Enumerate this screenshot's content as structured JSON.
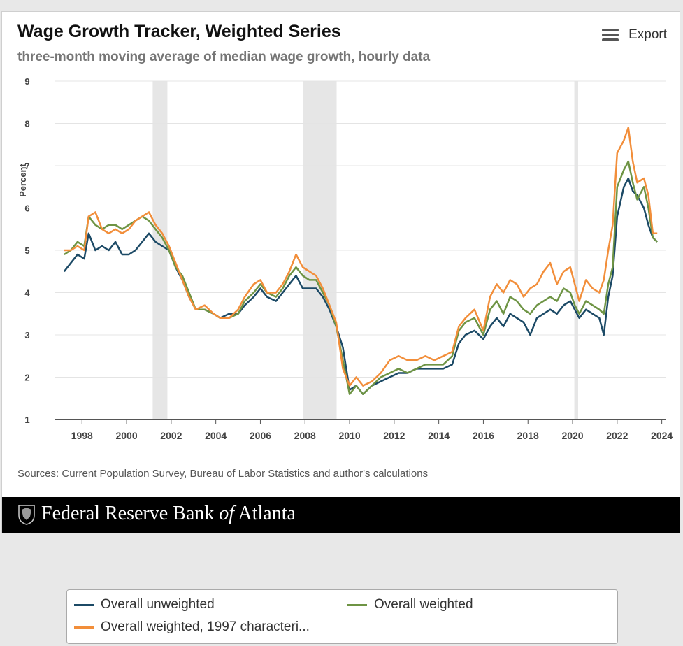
{
  "header": {
    "title": "Wage Growth Tracker, Weighted Series",
    "subtitle": "three-month moving average of median wage growth, hourly data",
    "export_label": "Export"
  },
  "sources": "Sources: Current Population Survey, Bureau of Labor Statistics and author's calculations",
  "footer": {
    "brand_pre": "Federal Reserve Bank ",
    "brand_of": "of",
    "brand_post": " Atlanta"
  },
  "legend": {
    "items": [
      {
        "label": "Overall unweighted",
        "color": "#1c4a66"
      },
      {
        "label": "Overall weighted",
        "color": "#6e9444"
      },
      {
        "label": "Overall weighted, 1997 characteri...",
        "color": "#f28e3a"
      }
    ]
  },
  "chart_data": {
    "type": "line",
    "title": "Wage Growth Tracker, Weighted Series",
    "subtitle": "three-month moving average of median wage growth, hourly data",
    "xlabel": "",
    "ylabel": "Percent",
    "xlim": [
      1996.8,
      2024.2
    ],
    "ylim": [
      1,
      9
    ],
    "x_ticks": [
      "1998",
      "2000",
      "2002",
      "2004",
      "2006",
      "2008",
      "2010",
      "2012",
      "2014",
      "2016",
      "2018",
      "2020",
      "2022",
      "2024"
    ],
    "y_ticks": [
      "1",
      "2",
      "3",
      "4",
      "5",
      "6",
      "7",
      "8",
      "9"
    ],
    "grid": "horizontal",
    "recessions": [
      [
        2001.17,
        2001.83
      ],
      [
        2007.92,
        2009.42
      ],
      [
        2020.08,
        2020.25
      ]
    ],
    "series": [
      {
        "name": "Overall unweighted",
        "color": "#1c4a66",
        "x": [
          1997.2,
          1997.5,
          1997.8,
          1998.1,
          1998.3,
          1998.6,
          1998.9,
          1999.2,
          1999.5,
          1999.8,
          2000.1,
          2000.4,
          2000.7,
          2001.0,
          2001.3,
          2001.6,
          2001.9,
          2002.2,
          2002.5,
          2002.8,
          2003.1,
          2003.5,
          2003.9,
          2004.2,
          2004.6,
          2005.0,
          2005.3,
          2005.7,
          2006.0,
          2006.3,
          2006.7,
          2007.0,
          2007.3,
          2007.6,
          2007.9,
          2008.2,
          2008.5,
          2008.8,
          2009.1,
          2009.4,
          2009.7,
          2010.0,
          2010.3,
          2010.6,
          2011.0,
          2011.4,
          2011.8,
          2012.2,
          2012.6,
          2013.0,
          2013.4,
          2013.8,
          2014.2,
          2014.6,
          2014.9,
          2015.2,
          2015.6,
          2016.0,
          2016.3,
          2016.6,
          2016.9,
          2017.2,
          2017.5,
          2017.8,
          2018.1,
          2018.4,
          2018.7,
          2019.0,
          2019.3,
          2019.6,
          2019.9,
          2020.1,
          2020.3,
          2020.6,
          2020.9,
          2021.2,
          2021.4,
          2021.6,
          2021.8,
          2022.0,
          2022.3,
          2022.5,
          2022.7,
          2022.9,
          2023.2,
          2023.4,
          2023.6,
          2023.8
        ],
        "values": [
          4.5,
          4.7,
          4.9,
          4.8,
          5.4,
          5.0,
          5.1,
          5.0,
          5.2,
          4.9,
          4.9,
          5.0,
          5.2,
          5.4,
          5.2,
          5.1,
          5.0,
          4.6,
          4.3,
          3.9,
          3.6,
          3.6,
          3.5,
          3.4,
          3.5,
          3.5,
          3.7,
          3.9,
          4.1,
          3.9,
          3.8,
          4.0,
          4.2,
          4.4,
          4.1,
          4.1,
          4.1,
          3.9,
          3.6,
          3.2,
          2.7,
          1.7,
          1.8,
          1.6,
          1.8,
          1.9,
          2.0,
          2.1,
          2.1,
          2.2,
          2.2,
          2.2,
          2.2,
          2.3,
          2.8,
          3.0,
          3.1,
          2.9,
          3.2,
          3.4,
          3.2,
          3.5,
          3.4,
          3.3,
          3.0,
          3.4,
          3.5,
          3.6,
          3.5,
          3.7,
          3.8,
          3.6,
          3.4,
          3.6,
          3.5,
          3.4,
          3.0,
          3.9,
          4.4,
          5.8,
          6.5,
          6.7,
          6.4,
          6.3,
          6.0,
          5.6,
          5.3,
          5.2
        ]
      },
      {
        "name": "Overall weighted",
        "color": "#6e9444",
        "x": [
          1997.2,
          1997.5,
          1997.8,
          1998.1,
          1998.3,
          1998.6,
          1998.9,
          1999.2,
          1999.5,
          1999.8,
          2000.1,
          2000.4,
          2000.7,
          2001.0,
          2001.3,
          2001.6,
          2001.9,
          2002.2,
          2002.5,
          2002.8,
          2003.1,
          2003.5,
          2003.9,
          2004.2,
          2004.6,
          2005.0,
          2005.3,
          2005.7,
          2006.0,
          2006.3,
          2006.7,
          2007.0,
          2007.3,
          2007.6,
          2007.9,
          2008.2,
          2008.5,
          2008.8,
          2009.1,
          2009.4,
          2009.7,
          2010.0,
          2010.3,
          2010.6,
          2011.0,
          2011.4,
          2011.8,
          2012.2,
          2012.6,
          2013.0,
          2013.4,
          2013.8,
          2014.2,
          2014.6,
          2014.9,
          2015.2,
          2015.6,
          2016.0,
          2016.3,
          2016.6,
          2016.9,
          2017.2,
          2017.5,
          2017.8,
          2018.1,
          2018.4,
          2018.7,
          2019.0,
          2019.3,
          2019.6,
          2019.9,
          2020.1,
          2020.3,
          2020.6,
          2020.9,
          2021.2,
          2021.4,
          2021.6,
          2021.8,
          2022.0,
          2022.3,
          2022.5,
          2022.7,
          2022.9,
          2023.2,
          2023.4,
          2023.6,
          2023.8
        ],
        "values": [
          4.9,
          5.0,
          5.2,
          5.1,
          5.8,
          5.6,
          5.5,
          5.6,
          5.6,
          5.5,
          5.6,
          5.7,
          5.8,
          5.7,
          5.5,
          5.3,
          5.0,
          4.6,
          4.4,
          4.0,
          3.6,
          3.6,
          3.5,
          3.4,
          3.4,
          3.5,
          3.8,
          4.0,
          4.2,
          4.0,
          3.9,
          4.1,
          4.4,
          4.6,
          4.4,
          4.3,
          4.3,
          4.0,
          3.7,
          3.2,
          2.4,
          1.6,
          1.8,
          1.6,
          1.8,
          2.0,
          2.1,
          2.2,
          2.1,
          2.2,
          2.3,
          2.3,
          2.3,
          2.5,
          3.1,
          3.3,
          3.4,
          3.0,
          3.6,
          3.8,
          3.5,
          3.9,
          3.8,
          3.6,
          3.5,
          3.7,
          3.8,
          3.9,
          3.8,
          4.1,
          4.0,
          3.7,
          3.5,
          3.8,
          3.7,
          3.6,
          3.5,
          4.2,
          4.6,
          6.5,
          6.9,
          7.1,
          6.6,
          6.2,
          6.5,
          6.0,
          5.3,
          5.2
        ]
      },
      {
        "name": "Overall weighted, 1997 characteri...",
        "color": "#f28e3a",
        "x": [
          1997.2,
          1997.5,
          1997.8,
          1998.1,
          1998.3,
          1998.6,
          1998.9,
          1999.2,
          1999.5,
          1999.8,
          2000.1,
          2000.4,
          2000.7,
          2001.0,
          2001.3,
          2001.6,
          2001.9,
          2002.2,
          2002.5,
          2002.8,
          2003.1,
          2003.5,
          2003.9,
          2004.2,
          2004.6,
          2005.0,
          2005.3,
          2005.7,
          2006.0,
          2006.3,
          2006.7,
          2007.0,
          2007.3,
          2007.6,
          2007.9,
          2008.2,
          2008.5,
          2008.8,
          2009.1,
          2009.4,
          2009.7,
          2010.0,
          2010.3,
          2010.6,
          2011.0,
          2011.4,
          2011.8,
          2012.2,
          2012.6,
          2013.0,
          2013.4,
          2013.8,
          2014.2,
          2014.6,
          2014.9,
          2015.2,
          2015.6,
          2016.0,
          2016.3,
          2016.6,
          2016.9,
          2017.2,
          2017.5,
          2017.8,
          2018.1,
          2018.4,
          2018.7,
          2019.0,
          2019.3,
          2019.6,
          2019.9,
          2020.1,
          2020.3,
          2020.6,
          2020.9,
          2021.2,
          2021.4,
          2021.6,
          2021.8,
          2022.0,
          2022.3,
          2022.5,
          2022.7,
          2022.9,
          2023.2,
          2023.4,
          2023.6,
          2023.8
        ],
        "values": [
          5.0,
          5.0,
          5.1,
          5.0,
          5.8,
          5.9,
          5.5,
          5.4,
          5.5,
          5.4,
          5.5,
          5.7,
          5.8,
          5.9,
          5.6,
          5.4,
          5.1,
          4.7,
          4.3,
          3.9,
          3.6,
          3.7,
          3.5,
          3.4,
          3.4,
          3.6,
          3.9,
          4.2,
          4.3,
          4.0,
          4.0,
          4.2,
          4.5,
          4.9,
          4.6,
          4.5,
          4.4,
          4.1,
          3.7,
          3.3,
          2.2,
          1.8,
          2.0,
          1.8,
          1.9,
          2.1,
          2.4,
          2.5,
          2.4,
          2.4,
          2.5,
          2.4,
          2.5,
          2.6,
          3.2,
          3.4,
          3.6,
          3.1,
          3.9,
          4.2,
          4.0,
          4.3,
          4.2,
          3.9,
          4.1,
          4.2,
          4.5,
          4.7,
          4.2,
          4.5,
          4.6,
          4.2,
          3.8,
          4.3,
          4.1,
          4.0,
          4.3,
          5.0,
          5.6,
          7.3,
          7.6,
          7.9,
          7.1,
          6.6,
          6.7,
          6.3,
          5.4,
          5.4
        ]
      }
    ]
  }
}
